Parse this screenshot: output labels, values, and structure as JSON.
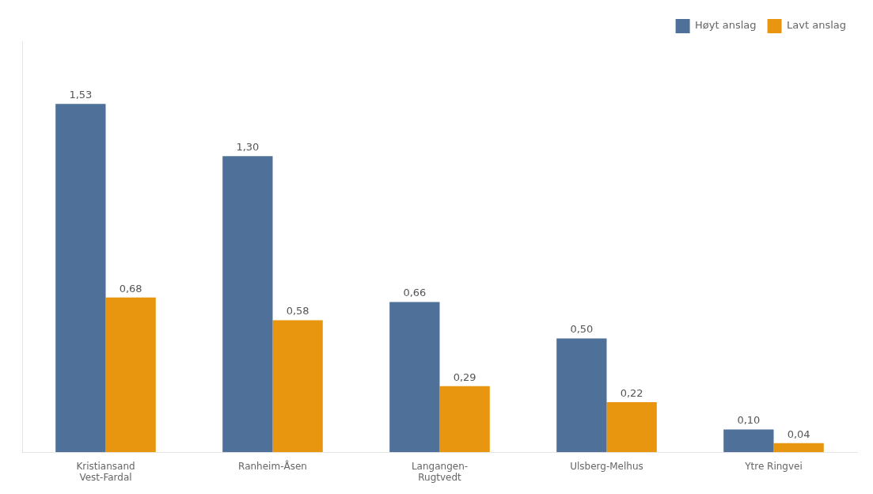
{
  "chart_data": {
    "type": "bar",
    "categories": [
      "Kristiansand\nVest-Fardal",
      "Ranheim-Åsen",
      "Langangen-\nRugtvedt",
      "Ulsberg-Melhus",
      "Ytre Ringvei"
    ],
    "series": [
      {
        "name": "Høyt anslag",
        "color": "#4e7099",
        "values": [
          1.53,
          1.3,
          0.66,
          0.5,
          0.1
        ],
        "value_labels": [
          "1,53",
          "1,30",
          "0,66",
          "0,50",
          "0,10"
        ]
      },
      {
        "name": "Lavt anslag",
        "color": "#e8960f",
        "values": [
          0.68,
          0.58,
          0.29,
          0.22,
          0.04
        ],
        "value_labels": [
          "0,68",
          "0,58",
          "0,29",
          "0,22",
          "0,04"
        ]
      }
    ],
    "ylim": [
      0,
      1.8054
    ],
    "grid": false,
    "legend": "upper right",
    "data_labels": true,
    "tick_labels": "x"
  }
}
